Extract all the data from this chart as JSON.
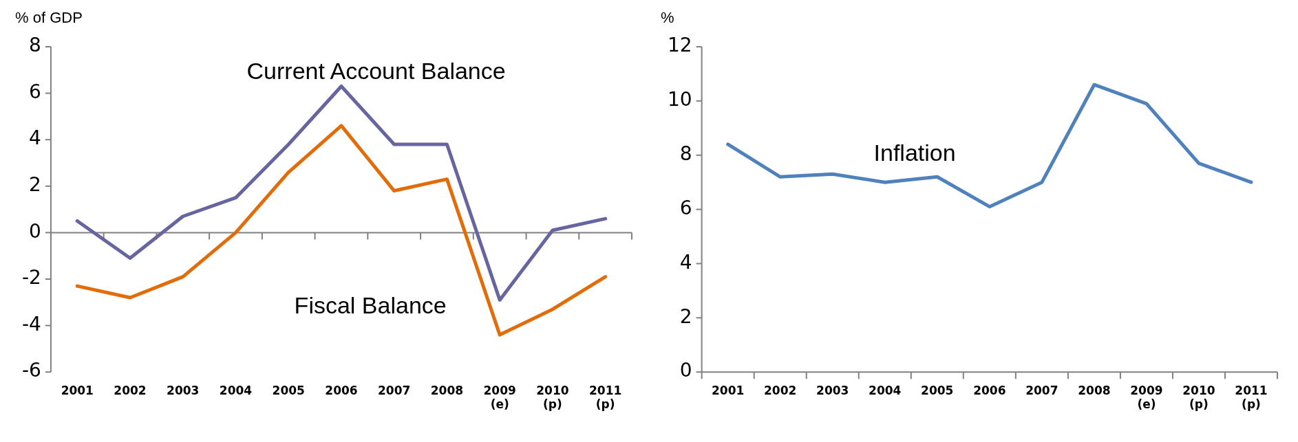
{
  "chart_data": [
    {
      "type": "line",
      "ylabel": "% of GDP",
      "categories": [
        "2001",
        "2002",
        "2003",
        "2004",
        "2005",
        "2006",
        "2007",
        "2008",
        "2009 (e)",
        "2010 (p)",
        "2011 (p)"
      ],
      "series": [
        {
          "name": "Current Account Balance",
          "color": "#6665a0",
          "values": [
            0.5,
            -1.1,
            0.7,
            1.5,
            3.8,
            6.3,
            3.8,
            3.8,
            -2.9,
            0.1,
            0.6
          ]
        },
        {
          "name": "Fiscal Balance",
          "color": "#e36c0a",
          "values": [
            -2.3,
            -2.8,
            -1.9,
            0,
            2.6,
            4.6,
            1.8,
            2.3,
            -4.4,
            -3.3,
            -1.9
          ]
        }
      ],
      "ylim": [
        -6,
        8
      ],
      "yticks": [
        -6,
        -4,
        -2,
        0,
        2,
        4,
        6,
        8
      ],
      "grid": false,
      "legend": false,
      "marker": "none",
      "line_style": "solid",
      "ref_lines": [
        {
          "axis": "y",
          "value": 0,
          "color": "#808080"
        }
      ]
    },
    {
      "type": "line",
      "ylabel": "%",
      "categories": [
        "2001",
        "2002",
        "2003",
        "2004",
        "2005",
        "2006",
        "2007",
        "2008",
        "2009 (e)",
        "2010 (p)",
        "2011 (p)"
      ],
      "series": [
        {
          "name": "Inflation",
          "color": "#4f81bd",
          "values": [
            8.4,
            7.2,
            7.3,
            7.0,
            7.2,
            6.1,
            7.0,
            10.6,
            9.9,
            7.7,
            7.0
          ]
        }
      ],
      "ylim": [
        0,
        12
      ],
      "yticks": [
        0,
        2,
        4,
        6,
        8,
        10,
        12
      ],
      "grid": false,
      "legend": false,
      "marker": "none",
      "line_style": "solid"
    }
  ]
}
